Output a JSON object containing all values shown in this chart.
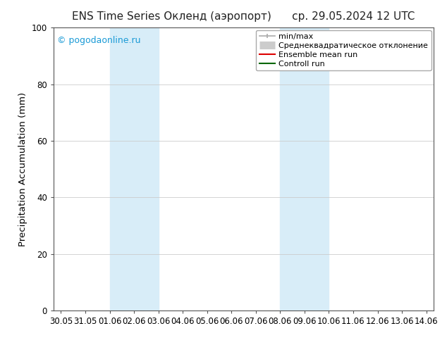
{
  "title": "ENS Time Series Окленд (аэропорт)      ср. 29.05.2024 12 UTC",
  "ylabel": "Precipitation Accumulation (mm)",
  "watermark": "© pogodaonline.ru",
  "watermark_color": "#1a9ad6",
  "ylim": [
    0,
    100
  ],
  "background_color": "#ffffff",
  "plot_bg_color": "#ffffff",
  "x_tick_labels": [
    "30.05",
    "31.05",
    "01.06",
    "02.06",
    "03.06",
    "04.06",
    "05.06",
    "06.06",
    "07.06",
    "08.06",
    "09.06",
    "10.06",
    "11.06",
    "12.06",
    "13.06",
    "14.06"
  ],
  "x_tick_positions": [
    0,
    1,
    2,
    3,
    4,
    5,
    6,
    7,
    8,
    9,
    10,
    11,
    12,
    13,
    14,
    15
  ],
  "shaded_regions": [
    {
      "xmin": 2.0,
      "xmax": 4.0,
      "color": "#d8edf8"
    },
    {
      "xmin": 9.0,
      "xmax": 11.0,
      "color": "#d8edf8"
    }
  ],
  "legend_entries": [
    {
      "label": "min/max",
      "color": "#aaaaaa",
      "lw": 1.2,
      "type": "line_ticks"
    },
    {
      "label": "Среднеквадратическое отклонение",
      "color": "#cccccc",
      "lw": 8,
      "type": "thick_line"
    },
    {
      "label": "Ensemble mean run",
      "color": "#dd0000",
      "lw": 1.5,
      "type": "line"
    },
    {
      "label": "Controll run",
      "color": "#006600",
      "lw": 1.5,
      "type": "line"
    }
  ],
  "ytick_values": [
    0,
    20,
    40,
    60,
    80,
    100
  ],
  "grid_color": "#cccccc",
  "tick_label_fontsize": 8.5,
  "axis_label_fontsize": 9.5,
  "title_fontsize": 11,
  "legend_fontsize": 8
}
